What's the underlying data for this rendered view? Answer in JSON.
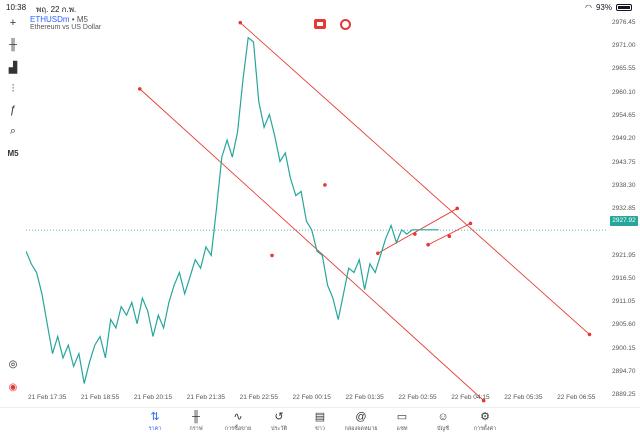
{
  "status_bar": {
    "time": "10:38",
    "date": "พฤ. 22 ก.พ.",
    "battery": "93%"
  },
  "symbol": {
    "name": "ETHUSDm",
    "separator": "•",
    "timeframe": "M5",
    "description": "Ethereum vs US Dollar"
  },
  "toolbar": {
    "items": [
      {
        "name": "crosshair-icon",
        "glyph": "+"
      },
      {
        "name": "candles-icon",
        "glyph": "╫"
      },
      {
        "name": "bar-chart-icon",
        "glyph": "▟"
      },
      {
        "name": "indicators-icon",
        "glyph": "⫶"
      },
      {
        "name": "function-icon",
        "glyph": "ƒ"
      },
      {
        "name": "objects-icon",
        "glyph": "⌕"
      },
      {
        "name": "timeframe",
        "glyph": "M5"
      }
    ]
  },
  "price_axis": {
    "labels": [
      "2976.45",
      "2971.00",
      "2965.55",
      "2960.10",
      "2954.65",
      "2949.20",
      "2943.75",
      "2938.30",
      "2932.85",
      "2921.95",
      "2916.50",
      "2911.05",
      "2905.60",
      "2900.15",
      "2894.70",
      "2889.25"
    ],
    "current_price": "2927.92"
  },
  "time_axis": {
    "labels": [
      "21 Feb 17:35",
      "21 Feb 18:55",
      "21 Feb 20:15",
      "21 Feb 21:35",
      "21 Feb 22:55",
      "22 Feb 00:15",
      "22 Feb 01:35",
      "22 Feb 02:55",
      "22 Feb 04:15",
      "22 Feb 05:35",
      "22 Feb 06:55"
    ]
  },
  "bottom_nav": [
    {
      "label": "ราคา",
      "icon": "quotes-icon",
      "glyph": "⇅",
      "active": true
    },
    {
      "label": "กราฟ",
      "icon": "chart-icon",
      "glyph": "╫",
      "active": false
    },
    {
      "label": "การซื้อขาย",
      "icon": "trade-icon",
      "glyph": "∿",
      "active": false
    },
    {
      "label": "ประวัติ",
      "icon": "history-icon",
      "glyph": "↺",
      "active": false
    },
    {
      "label": "ข่าว",
      "icon": "news-icon",
      "glyph": "▤",
      "active": false
    },
    {
      "label": "กล่องจดหมาย",
      "icon": "mailbox-icon",
      "glyph": "@",
      "active": false
    },
    {
      "label": "แชท",
      "icon": "chat-icon",
      "glyph": "▭",
      "active": false
    },
    {
      "label": "บัญชี",
      "icon": "account-icon",
      "glyph": "☺",
      "active": false
    },
    {
      "label": "การตั้งค่า",
      "icon": "settings-icon",
      "glyph": "⚙",
      "active": false
    }
  ],
  "colors": {
    "line": "#26a69a",
    "drawing": "#e53935",
    "accent": "#2962ff",
    "current_price_line": "#26a69a"
  },
  "chart_data": {
    "type": "line",
    "ylim": [
      2886.5,
      2979.0
    ],
    "y_ticks": [
      2976.45,
      2971.0,
      2965.55,
      2960.1,
      2954.65,
      2949.2,
      2943.75,
      2938.3,
      2932.85,
      2921.95,
      2916.5,
      2911.05,
      2905.6,
      2900.15,
      2894.7,
      2889.25
    ],
    "x_ticks": [
      "21 Feb 17:35",
      "21 Feb 18:55",
      "21 Feb 20:15",
      "21 Feb 21:35",
      "21 Feb 22:55",
      "22 Feb 00:15",
      "22 Feb 01:35",
      "22 Feb 02:55",
      "22 Feb 04:15",
      "22 Feb 05:35",
      "22 Feb 06:55"
    ],
    "x_range": [
      -0.4,
      10.6
    ],
    "series": [
      {
        "x": [
          -0.4,
          -0.3,
          -0.2,
          -0.1,
          0.0,
          0.1,
          0.2,
          0.3,
          0.4,
          0.5,
          0.6,
          0.7,
          0.8,
          0.9,
          1.0,
          1.1,
          1.2,
          1.3,
          1.4,
          1.5,
          1.6,
          1.7,
          1.8,
          1.9,
          2.0,
          2.1,
          2.2,
          2.3,
          2.4,
          2.5,
          2.6,
          2.7,
          2.8,
          2.9,
          3.0,
          3.1,
          3.2,
          3.3,
          3.4,
          3.5,
          3.6,
          3.7,
          3.8,
          3.9,
          4.0,
          4.1,
          4.2,
          4.3,
          4.4,
          4.5,
          4.6,
          4.7,
          4.8,
          4.9,
          5.0,
          5.1,
          5.2,
          5.3,
          5.4,
          5.5,
          5.6,
          5.7,
          5.8,
          5.9,
          6.0,
          6.1,
          6.2,
          6.3,
          6.4,
          6.5,
          6.6,
          6.7,
          6.8,
          6.9,
          7.0,
          7.1,
          7.2,
          7.3,
          7.4
        ],
        "values": [
          2923,
          2920,
          2918,
          2913,
          2906,
          2899,
          2903,
          2898,
          2901,
          2896,
          2899,
          2892,
          2897,
          2901,
          2903,
          2898,
          2907,
          2905,
          2910,
          2908,
          2911,
          2906,
          2912,
          2909,
          2903,
          2908,
          2905,
          2911,
          2915,
          2918,
          2913,
          2917,
          2921,
          2919,
          2924,
          2922,
          2933,
          2945,
          2949,
          2945,
          2951,
          2963,
          2973,
          2972,
          2958,
          2952,
          2955,
          2950,
          2944,
          2946,
          2940,
          2936,
          2937,
          2930,
          2928,
          2923,
          2922,
          2915,
          2912,
          2907,
          2913,
          2919,
          2918,
          2921,
          2914,
          2920,
          2918,
          2922,
          2926,
          2929,
          2925,
          2928,
          2927,
          2928,
          2928,
          2928,
          2928,
          2928,
          2928
        ]
      }
    ],
    "annotations": {
      "current_price": 2927.92
    }
  }
}
